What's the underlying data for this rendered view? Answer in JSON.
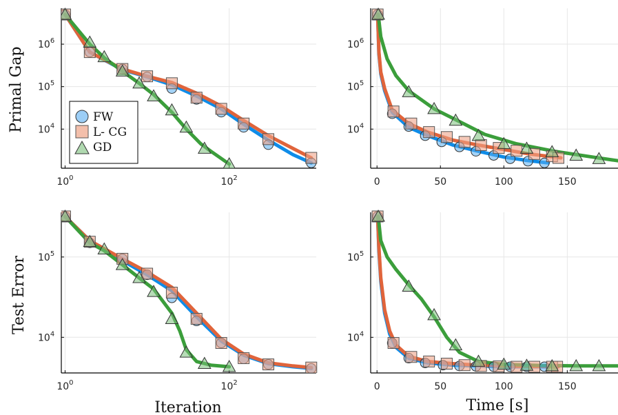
{
  "colors": {
    "FW": "#0f8ce8",
    "L- CG": "#e0643b",
    "GD": "#3b9e3b"
  },
  "legend": {
    "items": [
      "FW",
      "L- CG",
      "GD"
    ],
    "position": "bottom-left"
  },
  "chart_data": [
    {
      "type": "line",
      "title": "",
      "xlabel": "",
      "ylabel": "Primal Gap",
      "xscale": "log",
      "yscale": "log",
      "xlim": [
        0.9,
        1150
      ],
      "ylim": [
        1200,
        7000000
      ],
      "xticks": [
        {
          "pos": 1,
          "base": "10",
          "exp": "0"
        },
        {
          "pos": 100,
          "base": "10",
          "exp": "2"
        }
      ],
      "yticks": [
        {
          "pos": 10000,
          "base": "10",
          "exp": "4"
        },
        {
          "pos": 100000,
          "base": "10",
          "exp": "5"
        },
        {
          "pos": 1000000,
          "base": "10",
          "exp": "6"
        }
      ],
      "grid": true,
      "legend": "bottom-left",
      "series": [
        {
          "name": "FW",
          "x": [
            1,
            2,
            5,
            10,
            20,
            40,
            80,
            150,
            300,
            600,
            1000
          ],
          "y": [
            5000000,
            650000,
            250000,
            170000,
            110000,
            60000,
            30000,
            13000,
            5500,
            2500,
            1600
          ],
          "markers": [
            [
              1,
              5000000
            ],
            [
              2,
              650000
            ],
            [
              5,
              260000
            ],
            [
              10,
              170000
            ],
            [
              20,
              90000
            ],
            [
              40,
              50000
            ],
            [
              80,
              25000
            ],
            [
              150,
              11000
            ],
            [
              300,
              4300
            ],
            [
              1000,
              1600
            ]
          ]
        },
        {
          "name": "L- CG",
          "x": [
            1,
            2,
            5,
            10,
            20,
            40,
            80,
            150,
            300,
            600,
            1000
          ],
          "y": [
            5000000,
            650000,
            260000,
            175000,
            125000,
            70000,
            35000,
            16000,
            7000,
            3500,
            2100
          ],
          "markers": [
            [
              1,
              5000000
            ],
            [
              2,
              650000
            ],
            [
              5,
              260000
            ],
            [
              10,
              175000
            ],
            [
              20,
              120000
            ],
            [
              40,
              55000
            ],
            [
              80,
              30000
            ],
            [
              150,
              13500
            ],
            [
              300,
              5800
            ],
            [
              1000,
              2100
            ]
          ]
        },
        {
          "name": "GD",
          "x": [
            1,
            2,
            3,
            5,
            8,
            12,
            20,
            30,
            45,
            60,
            100
          ],
          "y": [
            5000000,
            1000000,
            480000,
            230000,
            120000,
            65000,
            25000,
            10000,
            4500,
            3000,
            1500
          ],
          "markers": [
            [
              1,
              5000000
            ],
            [
              2,
              1100000
            ],
            [
              3,
              500000
            ],
            [
              5,
              230000
            ],
            [
              8,
              120000
            ],
            [
              12,
              60000
            ],
            [
              20,
              28000
            ],
            [
              30,
              11000
            ],
            [
              50,
              3500
            ],
            [
              100,
              1500
            ]
          ]
        }
      ]
    },
    {
      "type": "line",
      "title": "",
      "xlabel": "",
      "ylabel": "",
      "xscale": "linear",
      "yscale": "log",
      "xlim": [
        -5,
        190
      ],
      "ylim": [
        1200,
        7000000
      ],
      "xticks": [
        {
          "pos": 0,
          "label": "0"
        },
        {
          "pos": 50,
          "label": "50"
        },
        {
          "pos": 100,
          "label": "100"
        },
        {
          "pos": 150,
          "label": "150"
        }
      ],
      "yticks": [
        {
          "pos": 10000,
          "base": "10",
          "exp": "4"
        },
        {
          "pos": 100000,
          "base": "10",
          "exp": "5"
        },
        {
          "pos": 1000000,
          "base": "10",
          "exp": "6"
        }
      ],
      "grid": true,
      "series": [
        {
          "name": "FW",
          "x": [
            0.5,
            1.5,
            3,
            6,
            12,
            25,
            40,
            60,
            80,
            100,
            120,
            135
          ],
          "y": [
            5000000,
            600000,
            200000,
            80000,
            25000,
            11000,
            7000,
            4200,
            3000,
            2200,
            1800,
            1600
          ],
          "markers": [
            [
              0.5,
              5000000
            ],
            [
              12,
              23000
            ],
            [
              25,
              11500
            ],
            [
              38,
              7000
            ],
            [
              51,
              5000
            ],
            [
              65,
              3800
            ],
            [
              78,
              3000
            ],
            [
              92,
              2400
            ],
            [
              105,
              2000
            ],
            [
              119,
              1750
            ],
            [
              132,
              1600
            ]
          ]
        },
        {
          "name": "L- CG",
          "x": [
            0.5,
            1.5,
            3,
            6,
            12,
            25,
            40,
            60,
            80,
            100,
            120,
            145
          ],
          "y": [
            5000000,
            650000,
            220000,
            90000,
            28000,
            13500,
            8500,
            5500,
            4200,
            3300,
            2600,
            2100
          ],
          "markers": [
            [
              0.5,
              5000000
            ],
            [
              13,
              26000
            ],
            [
              27,
              13500
            ],
            [
              41,
              8500
            ],
            [
              55,
              6500
            ],
            [
              69,
              5000
            ],
            [
              82,
              4200
            ],
            [
              96,
              3600
            ],
            [
              110,
              3100
            ],
            [
              124,
              2600
            ],
            [
              138,
              2300
            ],
            [
              143,
              2100
            ]
          ]
        },
        {
          "name": "GD",
          "x": [
            1,
            3,
            8,
            15,
            25,
            45,
            65,
            85,
            110,
            140,
            170,
            190
          ],
          "y": [
            5000000,
            1500000,
            450000,
            180000,
            80000,
            30000,
            15000,
            7500,
            4500,
            3000,
            2200,
            1800
          ],
          "markers": [
            [
              1,
              5000000
            ],
            [
              25,
              75000
            ],
            [
              45,
              30000
            ],
            [
              62,
              16000
            ],
            [
              80,
              7000
            ],
            [
              100,
              4500
            ],
            [
              118,
              3500
            ],
            [
              138,
              2900
            ],
            [
              157,
              2400
            ],
            [
              175,
              2000
            ]
          ]
        }
      ]
    },
    {
      "type": "line",
      "title": "",
      "xlabel": "Iteration",
      "ylabel": "Test Error",
      "xscale": "log",
      "yscale": "log",
      "xlim": [
        0.9,
        1150
      ],
      "ylim": [
        3600,
        360000
      ],
      "xticks": [
        {
          "pos": 1,
          "base": "10",
          "exp": "0"
        },
        {
          "pos": 100,
          "base": "10",
          "exp": "2"
        }
      ],
      "yticks": [
        {
          "pos": 10000,
          "base": "10",
          "exp": "4"
        },
        {
          "pos": 100000,
          "base": "10",
          "exp": "5"
        }
      ],
      "grid": true,
      "series": [
        {
          "name": "FW",
          "x": [
            1,
            2,
            5,
            10,
            20,
            40,
            80,
            150,
            300,
            600,
            1000
          ],
          "y": [
            320000,
            160000,
            90000,
            60000,
            38000,
            18000,
            9000,
            6000,
            4700,
            4300,
            4100
          ],
          "markers": [
            [
              1,
              320000
            ],
            [
              2,
              150000
            ],
            [
              5,
              95000
            ],
            [
              10,
              60000
            ],
            [
              20,
              31000
            ],
            [
              40,
              16000
            ],
            [
              80,
              8500
            ],
            [
              150,
              5400
            ],
            [
              300,
              4600
            ],
            [
              1000,
              4100
            ]
          ]
        },
        {
          "name": "L- CG",
          "x": [
            1,
            2,
            5,
            10,
            20,
            40,
            80,
            150,
            300,
            600,
            1000
          ],
          "y": [
            320000,
            160000,
            95000,
            65000,
            42000,
            20000,
            9500,
            6200,
            4800,
            4400,
            4200
          ],
          "markers": [
            [
              1,
              320000
            ],
            [
              2,
              155000
            ],
            [
              5,
              95000
            ],
            [
              10,
              62000
            ],
            [
              20,
              36000
            ],
            [
              40,
              17000
            ],
            [
              80,
              8500
            ],
            [
              150,
              5500
            ],
            [
              300,
              4600
            ],
            [
              1000,
              4200
            ]
          ]
        },
        {
          "name": "GD",
          "x": [
            1,
            2,
            3,
            5,
            8,
            12,
            20,
            25,
            30,
            40,
            60,
            100
          ],
          "y": [
            320000,
            150000,
            120000,
            80000,
            55000,
            40000,
            20000,
            12000,
            7000,
            5000,
            4500,
            4300
          ],
          "markers": [
            [
              1,
              320000
            ],
            [
              2,
              155000
            ],
            [
              3,
              125000
            ],
            [
              5,
              80000
            ],
            [
              8,
              55000
            ],
            [
              12,
              37000
            ],
            [
              20,
              17000
            ],
            [
              30,
              6500
            ],
            [
              50,
              4700
            ],
            [
              100,
              4300
            ]
          ]
        }
      ]
    },
    {
      "type": "line",
      "title": "",
      "xlabel": "Time [s]",
      "ylabel": "",
      "xscale": "linear",
      "yscale": "log",
      "xlim": [
        -5,
        190
      ],
      "ylim": [
        3600,
        360000
      ],
      "xticks": [
        {
          "pos": 0,
          "label": "0"
        },
        {
          "pos": 50,
          "label": "50"
        },
        {
          "pos": 100,
          "label": "100"
        },
        {
          "pos": 150,
          "label": "150"
        }
      ],
      "yticks": [
        {
          "pos": 10000,
          "base": "10",
          "exp": "4"
        },
        {
          "pos": 100000,
          "base": "10",
          "exp": "5"
        }
      ],
      "grid": true,
      "series": [
        {
          "name": "FW",
          "x": [
            0.5,
            1.5,
            3,
            6,
            10,
            15,
            25,
            40,
            60,
            80,
            100,
            120,
            135
          ],
          "y": [
            320000,
            120000,
            50000,
            20000,
            11000,
            7500,
            5500,
            4800,
            4500,
            4400,
            4300,
            4300,
            4300
          ],
          "markers": [
            [
              0.5,
              320000
            ],
            [
              12,
              8500
            ],
            [
              25,
              5500
            ],
            [
              38,
              4800
            ],
            [
              52,
              4500
            ],
            [
              65,
              4400
            ],
            [
              78,
              4350
            ],
            [
              92,
              4300
            ],
            [
              105,
              4300
            ],
            [
              118,
              4300
            ],
            [
              132,
              4300
            ]
          ]
        },
        {
          "name": "L- CG",
          "x": [
            0.5,
            1.5,
            3,
            6,
            10,
            15,
            25,
            40,
            60,
            80,
            100,
            120,
            143
          ],
          "y": [
            320000,
            130000,
            55000,
            22000,
            12000,
            8000,
            5800,
            5000,
            4700,
            4500,
            4400,
            4350,
            4300
          ],
          "markers": [
            [
              0.5,
              320000
            ],
            [
              13,
              8500
            ],
            [
              27,
              5700
            ],
            [
              41,
              5000
            ],
            [
              55,
              4700
            ],
            [
              69,
              4500
            ],
            [
              82,
              4400
            ],
            [
              96,
              4350
            ],
            [
              110,
              4300
            ],
            [
              124,
              4300
            ],
            [
              138,
              4300
            ],
            [
              142,
              4300
            ]
          ]
        },
        {
          "name": "GD",
          "x": [
            1,
            3,
            8,
            15,
            25,
            35,
            45,
            55,
            65,
            80,
            100,
            130,
            160,
            190
          ],
          "y": [
            320000,
            160000,
            100000,
            70000,
            45000,
            30000,
            18000,
            10000,
            6500,
            5000,
            4600,
            4450,
            4400,
            4400
          ],
          "markers": [
            [
              1,
              320000
            ],
            [
              25,
              43000
            ],
            [
              45,
              19000
            ],
            [
              62,
              8000
            ],
            [
              80,
              5000
            ],
            [
              100,
              4600
            ],
            [
              118,
              4450
            ],
            [
              138,
              4400
            ],
            [
              157,
              4400
            ],
            [
              175,
              4400
            ]
          ]
        }
      ]
    }
  ]
}
